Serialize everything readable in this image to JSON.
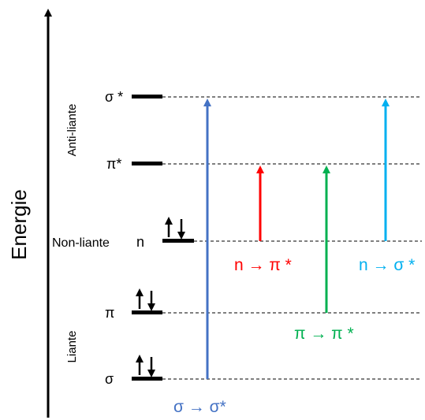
{
  "axis": {
    "label": "Energie"
  },
  "groups": {
    "anti": "Anti-liante",
    "non": "Non-liante",
    "bonding": "Liante"
  },
  "levels": [
    {
      "id": "sigma-star",
      "symbol": "σ *",
      "electrons": 0
    },
    {
      "id": "pi-star",
      "symbol": "π*",
      "electrons": 0
    },
    {
      "id": "n",
      "symbol": "n",
      "electrons": 2
    },
    {
      "id": "pi",
      "symbol": "π",
      "electrons": 2
    },
    {
      "id": "sigma",
      "symbol": "σ",
      "electrons": 2
    }
  ],
  "transitions": [
    {
      "id": "sigma-sigma-star",
      "label": "σ → σ*",
      "from": "sigma",
      "to": "sigma-star",
      "color": "#4472C4"
    },
    {
      "id": "n-pi-star",
      "label": "n → π *",
      "from": "n",
      "to": "pi-star",
      "color": "#FF0000"
    },
    {
      "id": "pi-pi-star",
      "label": "π → π *",
      "from": "pi",
      "to": "pi-star",
      "color": "#00B050"
    },
    {
      "id": "n-sigma-star",
      "label": "n → σ *",
      "from": "n",
      "to": "sigma-star",
      "color": "#00B0F0"
    }
  ]
}
